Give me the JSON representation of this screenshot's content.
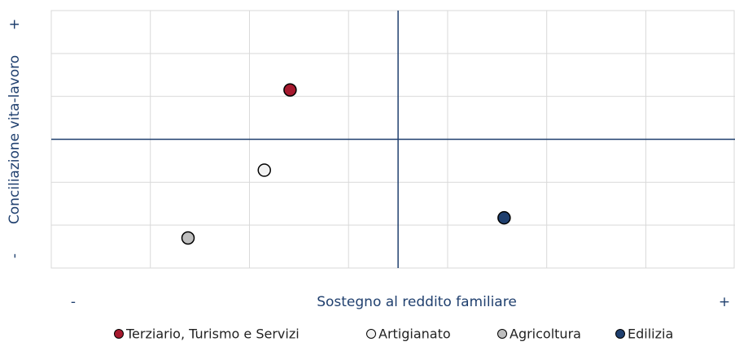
{
  "chart_data": {
    "type": "scatter",
    "x_label": "Sostegno al reddito familiare",
    "x_min_label": "-",
    "x_max_label": "+",
    "y_label": "Conciliazione vita-lavoro",
    "y_min_label": "-",
    "y_max_label": "+",
    "xlim": [
      -3.5,
      3.4
    ],
    "xticks": [
      -2.5,
      -1.5,
      -0.5,
      0.5,
      1.5,
      2.5
    ],
    "ylim": [
      -3,
      3
    ],
    "yticks": [
      -2,
      -1,
      0,
      1,
      2
    ],
    "grid": true,
    "reference_lines": {
      "x": 0,
      "y": 0
    },
    "series": [
      {
        "name": "Terziario, Turismo e Servizi",
        "color": "#a6192e",
        "x": [
          -1.09
        ],
        "values": [
          1.15
        ]
      },
      {
        "name": "Artigianato",
        "color": "#f2f2f2",
        "x": [
          -1.35
        ],
        "values": [
          -0.72
        ]
      },
      {
        "name": "Agricoltura",
        "color": "#bfbfbf",
        "x": [
          -2.12
        ],
        "values": [
          -2.3
        ]
      },
      {
        "name": "Edilizia",
        "color": "#1f3f6e",
        "x": [
          1.07
        ],
        "values": [
          -1.83
        ]
      }
    ],
    "legend": "bottom"
  }
}
